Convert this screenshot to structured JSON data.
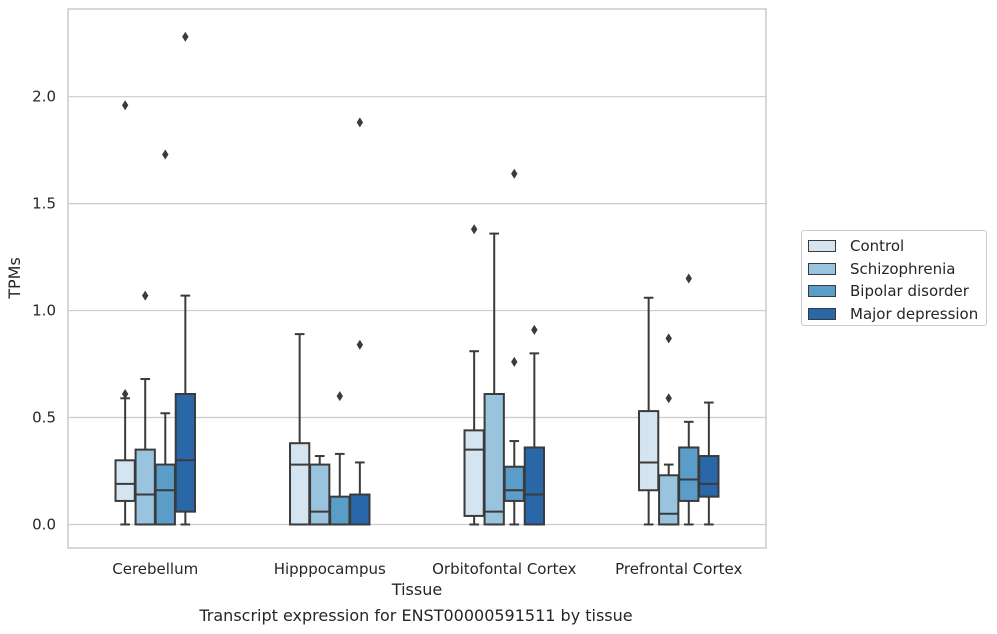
{
  "caption": "Transcript expression for ENST00000591511 by tissue",
  "chart_data": {
    "type": "box",
    "xlabel": "Tissue",
    "ylabel": "TPMs",
    "ylim": [
      -0.11,
      2.41
    ],
    "yticks": [
      0.0,
      0.5,
      1.0,
      1.5,
      2.0
    ],
    "ytick_labels": [
      "0.0",
      "0.5",
      "1.0",
      "1.5",
      "2.0"
    ],
    "grid": "horizontal",
    "legend_position": "right",
    "categories": [
      "Cerebellum",
      "Hipppocampus",
      "Orbitofontal Cortex",
      "Prefrontal Cortex"
    ],
    "series": [
      {
        "name": "Control",
        "color": "#d4e4f1",
        "boxes": [
          {
            "whislo": 0.0,
            "q1": 0.11,
            "med": 0.19,
            "q3": 0.3,
            "whishi": 0.59,
            "fliers": [
              0.61,
              1.96
            ]
          },
          {
            "whislo": 0.0,
            "q1": 0.0,
            "med": 0.28,
            "q3": 0.38,
            "whishi": 0.89,
            "fliers": []
          },
          {
            "whislo": 0.0,
            "q1": 0.04,
            "med": 0.35,
            "q3": 0.44,
            "whishi": 0.81,
            "fliers": [
              1.38
            ]
          },
          {
            "whislo": 0.0,
            "q1": 0.16,
            "med": 0.29,
            "q3": 0.53,
            "whishi": 1.06,
            "fliers": []
          }
        ]
      },
      {
        "name": "Schizophrenia",
        "color": "#9ac4dd",
        "boxes": [
          {
            "whislo": 0.0,
            "q1": 0.0,
            "med": 0.14,
            "q3": 0.35,
            "whishi": 0.68,
            "fliers": [
              1.07
            ]
          },
          {
            "whislo": 0.0,
            "q1": 0.0,
            "med": 0.06,
            "q3": 0.28,
            "whishi": 0.32,
            "fliers": []
          },
          {
            "whislo": 0.0,
            "q1": 0.0,
            "med": 0.06,
            "q3": 0.61,
            "whishi": 1.36,
            "fliers": []
          },
          {
            "whislo": 0.0,
            "q1": 0.0,
            "med": 0.05,
            "q3": 0.23,
            "whishi": 0.28,
            "fliers": [
              0.59,
              0.87
            ]
          }
        ]
      },
      {
        "name": "Bipolar disorder",
        "color": "#5a9dc9",
        "boxes": [
          {
            "whislo": 0.0,
            "q1": 0.0,
            "med": 0.16,
            "q3": 0.28,
            "whishi": 0.52,
            "fliers": [
              1.73
            ]
          },
          {
            "whislo": 0.0,
            "q1": 0.0,
            "med": 0.0,
            "q3": 0.13,
            "whishi": 0.33,
            "fliers": [
              0.6
            ]
          },
          {
            "whislo": 0.0,
            "q1": 0.11,
            "med": 0.16,
            "q3": 0.27,
            "whishi": 0.39,
            "fliers": [
              0.76,
              1.64
            ]
          },
          {
            "whislo": 0.0,
            "q1": 0.11,
            "med": 0.21,
            "q3": 0.36,
            "whishi": 0.48,
            "fliers": [
              1.15
            ]
          }
        ]
      },
      {
        "name": "Major depression",
        "color": "#2a67a9",
        "boxes": [
          {
            "whislo": 0.0,
            "q1": 0.06,
            "med": 0.3,
            "q3": 0.61,
            "whishi": 1.07,
            "fliers": [
              2.28
            ]
          },
          {
            "whislo": 0.0,
            "q1": 0.0,
            "med": 0.0,
            "q3": 0.14,
            "whishi": 0.29,
            "fliers": [
              0.84,
              1.88
            ]
          },
          {
            "whislo": 0.0,
            "q1": 0.0,
            "med": 0.14,
            "q3": 0.36,
            "whishi": 0.8,
            "fliers": [
              0.91
            ]
          },
          {
            "whislo": 0.0,
            "q1": 0.13,
            "med": 0.19,
            "q3": 0.32,
            "whishi": 0.57,
            "fliers": []
          }
        ]
      }
    ]
  }
}
